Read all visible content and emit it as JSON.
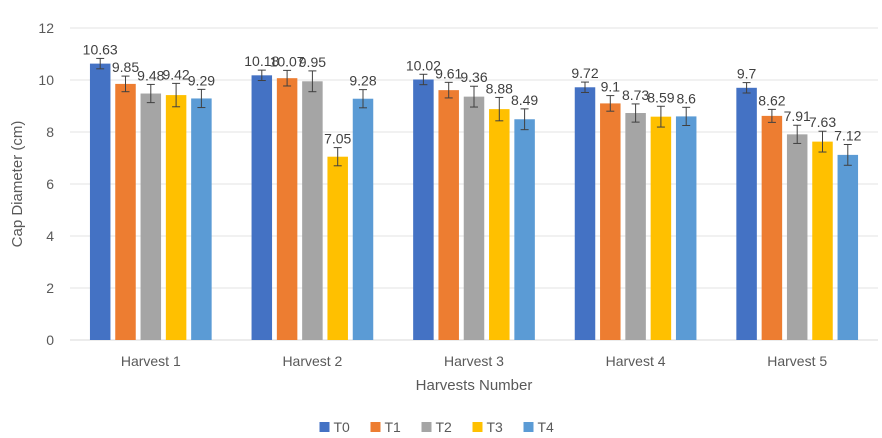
{
  "chart_data": {
    "type": "bar",
    "xlabel": "Harvests Number",
    "ylabel": "Cap Diameter (cm)",
    "ylim": [
      0,
      12
    ],
    "yticks": [
      0,
      2,
      4,
      6,
      8,
      10,
      12
    ],
    "grid": "horizontal",
    "legend_position": "bottom",
    "categories": [
      "Harvest 1",
      "Harvest 2",
      "Harvest 3",
      "Harvest 4",
      "Harvest 5"
    ],
    "series": [
      {
        "name": "T0",
        "color": "#4472C4",
        "values": [
          10.63,
          10.18,
          10.02,
          9.72,
          9.7
        ],
        "labels": [
          "10.63",
          "10.18",
          "10.02",
          "9.72",
          "9.7"
        ],
        "errors": [
          0.2,
          0.2,
          0.2,
          0.2,
          0.2
        ]
      },
      {
        "name": "T1",
        "color": "#ED7D31",
        "values": [
          9.85,
          10.07,
          9.61,
          9.1,
          8.62
        ],
        "labels": [
          "9.85",
          "10.07",
          "9.61",
          "9.1",
          "8.62"
        ],
        "errors": [
          0.3,
          0.3,
          0.3,
          0.3,
          0.25
        ]
      },
      {
        "name": "T2",
        "color": "#A5A5A5",
        "values": [
          9.48,
          9.95,
          9.36,
          8.73,
          7.91
        ],
        "labels": [
          "9.48",
          "9.95",
          "9.36",
          "8.73",
          "7.91"
        ],
        "errors": [
          0.35,
          0.4,
          0.4,
          0.35,
          0.35
        ]
      },
      {
        "name": "T3",
        "color": "#FFC000",
        "values": [
          9.42,
          7.05,
          8.88,
          8.59,
          7.63
        ],
        "labels": [
          "9.42",
          "7.05",
          "8.88",
          "8.59",
          "7.63"
        ],
        "errors": [
          0.45,
          0.35,
          0.45,
          0.4,
          0.4
        ]
      },
      {
        "name": "T4",
        "color": "#5B9BD5",
        "values": [
          9.29,
          9.28,
          8.49,
          8.6,
          7.12
        ],
        "labels": [
          "9.29",
          "9.28",
          "8.49",
          "8.6",
          "7.12"
        ],
        "errors": [
          0.35,
          0.35,
          0.4,
          0.35,
          0.4
        ]
      }
    ]
  }
}
